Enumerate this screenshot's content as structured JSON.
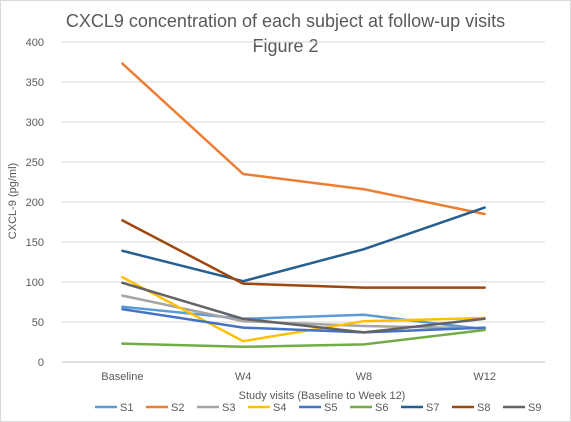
{
  "chart_data": {
    "type": "line",
    "title": "CXCL9 concentration of each subject at follow-up visits",
    "subtitle": "Figure 2",
    "xlabel": "Study visits (Baseline to Week 12)",
    "ylabel": "CXCL-9 (pg/ml)",
    "categories": [
      "Baseline",
      "W4",
      "W8",
      "W12"
    ],
    "ylim": [
      0,
      400
    ],
    "yticks": [
      "0",
      "50",
      "100",
      "150",
      "200",
      "250",
      "300",
      "350",
      "400"
    ],
    "grid": "horizontal",
    "legend_position": "bottom",
    "series": [
      {
        "name": "S1",
        "color": "#5b9bd5",
        "values": [
          69,
          54,
          59,
          41
        ]
      },
      {
        "name": "S2",
        "color": "#ed7d31",
        "values": [
          373,
          235,
          216,
          185
        ]
      },
      {
        "name": "S3",
        "color": "#a5a5a5",
        "values": [
          83,
          51,
          45,
          42
        ]
      },
      {
        "name": "S4",
        "color": "#ffc000",
        "values": [
          106,
          26,
          51,
          55
        ]
      },
      {
        "name": "S5",
        "color": "#4472c4",
        "values": [
          66,
          43,
          37,
          43
        ]
      },
      {
        "name": "S6",
        "color": "#70ad47",
        "values": [
          23,
          19,
          22,
          40
        ]
      },
      {
        "name": "S7",
        "color": "#255e91",
        "values": [
          139,
          101,
          141,
          193
        ]
      },
      {
        "name": "S8",
        "color": "#9e480e",
        "values": [
          177,
          98,
          93,
          93
        ]
      },
      {
        "name": "S9",
        "color": "#636363",
        "values": [
          99,
          54,
          37,
          54
        ]
      }
    ]
  }
}
